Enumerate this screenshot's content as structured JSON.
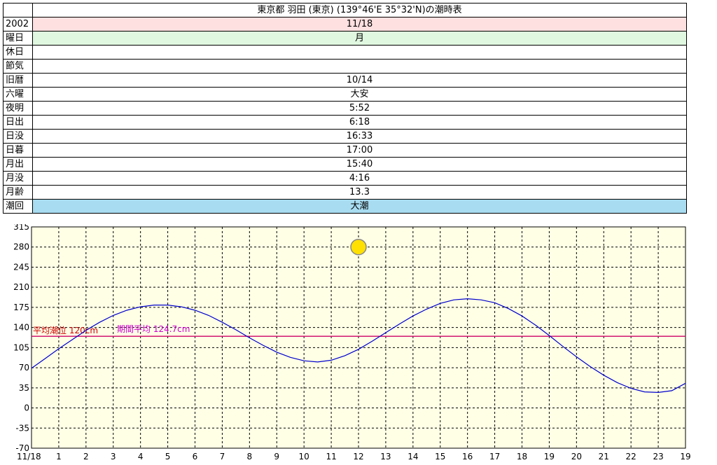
{
  "title": "東京都 羽田 (東京) (139°46'E 35°32'N)の潮時表",
  "info_rows": [
    {
      "label": "2002",
      "value": "11/18",
      "bg": "#ffe0e0"
    },
    {
      "label": "曜日",
      "value": "月",
      "bg": "#e0f8e0"
    },
    {
      "label": "休日",
      "value": "",
      "bg": "#ffffff"
    },
    {
      "label": "節気",
      "value": "",
      "bg": "#ffffff"
    },
    {
      "label": "旧暦",
      "value": "10/14",
      "bg": "#ffffff"
    },
    {
      "label": "六曜",
      "value": "大安",
      "bg": "#ffffff"
    },
    {
      "label": "夜明",
      "value": "5:52",
      "bg": "#ffffff"
    },
    {
      "label": "日出",
      "value": "6:18",
      "bg": "#ffffff"
    },
    {
      "label": "日没",
      "value": "16:33",
      "bg": "#ffffff"
    },
    {
      "label": "日暮",
      "value": "17:00",
      "bg": "#ffffff"
    },
    {
      "label": "月出",
      "value": "15:40",
      "bg": "#ffffff"
    },
    {
      "label": "月没",
      "value": "4:16",
      "bg": "#ffffff"
    },
    {
      "label": "月齢",
      "value": "13.3",
      "bg": "#ffffff"
    },
    {
      "label": "潮回",
      "value": "大潮",
      "bg": "#a8dcf0"
    }
  ],
  "chart_data": {
    "type": "line",
    "x": [
      0,
      0.5,
      1,
      1.5,
      2,
      2.5,
      3,
      3.5,
      4,
      4.5,
      5,
      5.5,
      6,
      6.5,
      7,
      7.5,
      8,
      8.5,
      9,
      9.5,
      10,
      10.5,
      11,
      11.5,
      12,
      12.5,
      13,
      13.5,
      14,
      14.5,
      15,
      15.5,
      16,
      16.5,
      17,
      17.5,
      18,
      18.5,
      19,
      19.5,
      20,
      20.5,
      21,
      21.5,
      22,
      22.5,
      23,
      23.5,
      24
    ],
    "series": [
      {
        "values": [
          69,
          86,
          103,
          119,
          135,
          149,
          161,
          170,
          176,
          179,
          179,
          176,
          170,
          161,
          149,
          136,
          122,
          109,
          97,
          88,
          82,
          80,
          83,
          91,
          102,
          116,
          131,
          146,
          160,
          172,
          182,
          188,
          190,
          188,
          183,
          173,
          160,
          144,
          126,
          107,
          89,
          72,
          57,
          44,
          34,
          28,
          27,
          30,
          43
        ],
        "color": "#0000cc"
      }
    ],
    "mean_line": {
      "value": 124.7,
      "color": "#cc0066"
    },
    "annotations": [
      {
        "text": "平均潮位 120cm",
        "color": "#cc0000"
      },
      {
        "text": "期間平均 124.7cm",
        "color": "#cc00cc"
      }
    ],
    "ylim": [
      -70,
      315
    ],
    "yticks": [
      "315",
      "280",
      "245",
      "210",
      "175",
      "140",
      "105",
      "70",
      "35",
      "0",
      "-35",
      "-70"
    ],
    "xlim": [
      0,
      24
    ],
    "xticks": [
      "11/18",
      "1",
      "2",
      "3",
      "4",
      "5",
      "6",
      "7",
      "8",
      "9",
      "10",
      "11",
      "12",
      "13",
      "14",
      "15",
      "16",
      "17",
      "18",
      "19",
      "20",
      "21",
      "22",
      "23",
      "19"
    ],
    "sun_marker": {
      "hour": 12,
      "level": 280
    },
    "background": "#ffffe6",
    "grid": true
  }
}
